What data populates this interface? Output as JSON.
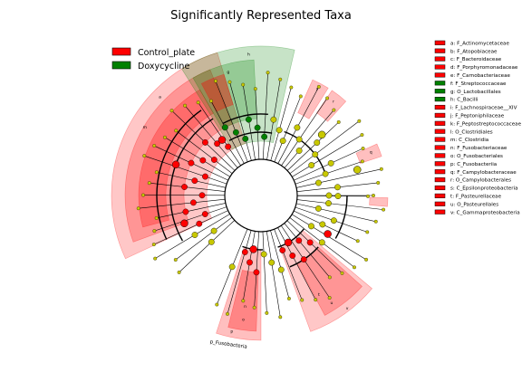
{
  "window": {
    "title": "Significantly Represented Taxa"
  },
  "colors": {
    "control_plate": "#ff0000",
    "doxycycline": "#008000",
    "node_neutral": "#c8c800",
    "edge": "#000000"
  },
  "chart_data": {
    "type": "cladogram",
    "title": "Significantly Represented Taxa",
    "legend_position": "top-left",
    "classes": [
      {
        "name": "Control_plate",
        "color": "#ff0000"
      },
      {
        "name": "Doxycycline",
        "color": "#008000"
      }
    ],
    "taxa_legend": [
      {
        "key": "a",
        "label": "a: F_Actinomycetaceae",
        "class": "Control_plate"
      },
      {
        "key": "b",
        "label": "b: F_Atopobiaceae",
        "class": "Control_plate"
      },
      {
        "key": "c",
        "label": "c: F_Bacteroidaceae",
        "class": "Control_plate"
      },
      {
        "key": "d",
        "label": "d: F_Porphyromonadaceae",
        "class": "Control_plate"
      },
      {
        "key": "e",
        "label": "e: F_Carnobacteriaceae",
        "class": "Control_plate"
      },
      {
        "key": "f",
        "label": "f: F_Streptococcaceae",
        "class": "Doxycycline"
      },
      {
        "key": "g",
        "label": "g: O_Lactobacillales",
        "class": "Doxycycline"
      },
      {
        "key": "h",
        "label": "h: C_Bacilli",
        "class": "Doxycycline"
      },
      {
        "key": "i",
        "label": "i: F_Lachnospiraceae__XIV",
        "class": "Control_plate"
      },
      {
        "key": "j",
        "label": "j: F_Peptoniphilaceae",
        "class": "Control_plate"
      },
      {
        "key": "k",
        "label": "k: F_Peptostreptococcaceae",
        "class": "Control_plate"
      },
      {
        "key": "l",
        "label": "l: O_Clostridiales",
        "class": "Control_plate"
      },
      {
        "key": "m",
        "label": "m: C_Clostridia",
        "class": "Control_plate"
      },
      {
        "key": "n",
        "label": "n: F_Fusobacteriaceae",
        "class": "Control_plate"
      },
      {
        "key": "o",
        "label": "o: O_Fusobacteriales",
        "class": "Control_plate"
      },
      {
        "key": "p",
        "label": "p: C_Fusobacteriia",
        "class": "Control_plate"
      },
      {
        "key": "q",
        "label": "q: F_Campylobacteraceae",
        "class": "Control_plate"
      },
      {
        "key": "r",
        "label": "r: O_Campylobacterales",
        "class": "Control_plate"
      },
      {
        "key": "s",
        "label": "s: C_Epsilonproteobacteria",
        "class": "Control_plate"
      },
      {
        "key": "t",
        "label": "t: F_Pasteurellaceae",
        "class": "Control_plate"
      },
      {
        "key": "u",
        "label": "u: O_Pasteurellales",
        "class": "Control_plate"
      },
      {
        "key": "v",
        "label": "v: C_Gammaproteobacteria",
        "class": "Control_plate"
      }
    ],
    "phylum_labels": [
      {
        "text": "p_Fusobacteria"
      }
    ]
  }
}
